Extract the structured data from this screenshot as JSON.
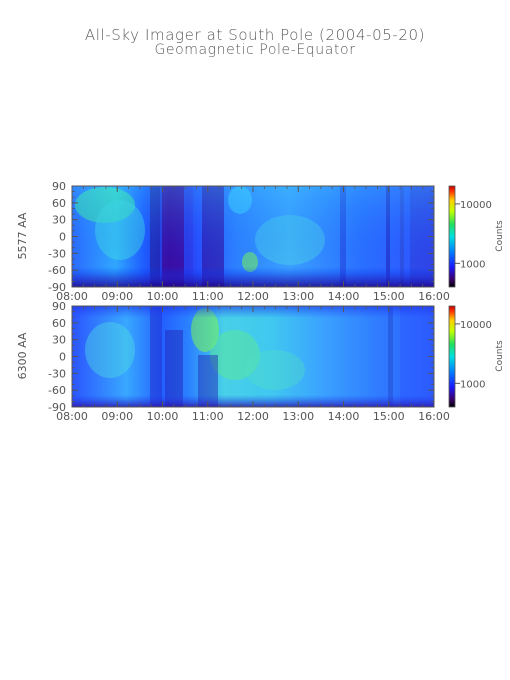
{
  "header": {
    "title": "All-Sky Imager at South Pole (2004-05-20)",
    "subtitle": "Geomagnetic Pole-Equator"
  },
  "chart_data": [
    {
      "type": "heatmap",
      "panel": "top",
      "ylabel": "5577 AA",
      "x_ticks": [
        "08:00",
        "09:00",
        "10:00",
        "11:00",
        "12:00",
        "13:00",
        "14:00",
        "15:00",
        "16:00"
      ],
      "x_range": [
        "08:00",
        "16:00"
      ],
      "y_ticks": [
        90,
        60,
        30,
        0,
        -30,
        -60,
        -90
      ],
      "ylim": [
        -90,
        90
      ],
      "colorbar": {
        "label": "Counts",
        "scale": "log",
        "ticks": [
          10000,
          1000
        ],
        "tick_labels": [
          "10000",
          "1000"
        ]
      }
    },
    {
      "type": "heatmap",
      "panel": "bottom",
      "ylabel": "6300 AA",
      "x_ticks": [
        "08:00",
        "09:00",
        "10:00",
        "11:00",
        "12:00",
        "13:00",
        "14:00",
        "15:00",
        "16:00"
      ],
      "x_range": [
        "08:00",
        "16:00"
      ],
      "y_ticks": [
        90,
        60,
        30,
        0,
        -30,
        -60,
        -90
      ],
      "ylim": [
        -90,
        90
      ],
      "colorbar": {
        "label": "Counts",
        "scale": "log",
        "ticks": [
          10000,
          1000
        ],
        "tick_labels": [
          "10000",
          "1000"
        ]
      }
    }
  ]
}
